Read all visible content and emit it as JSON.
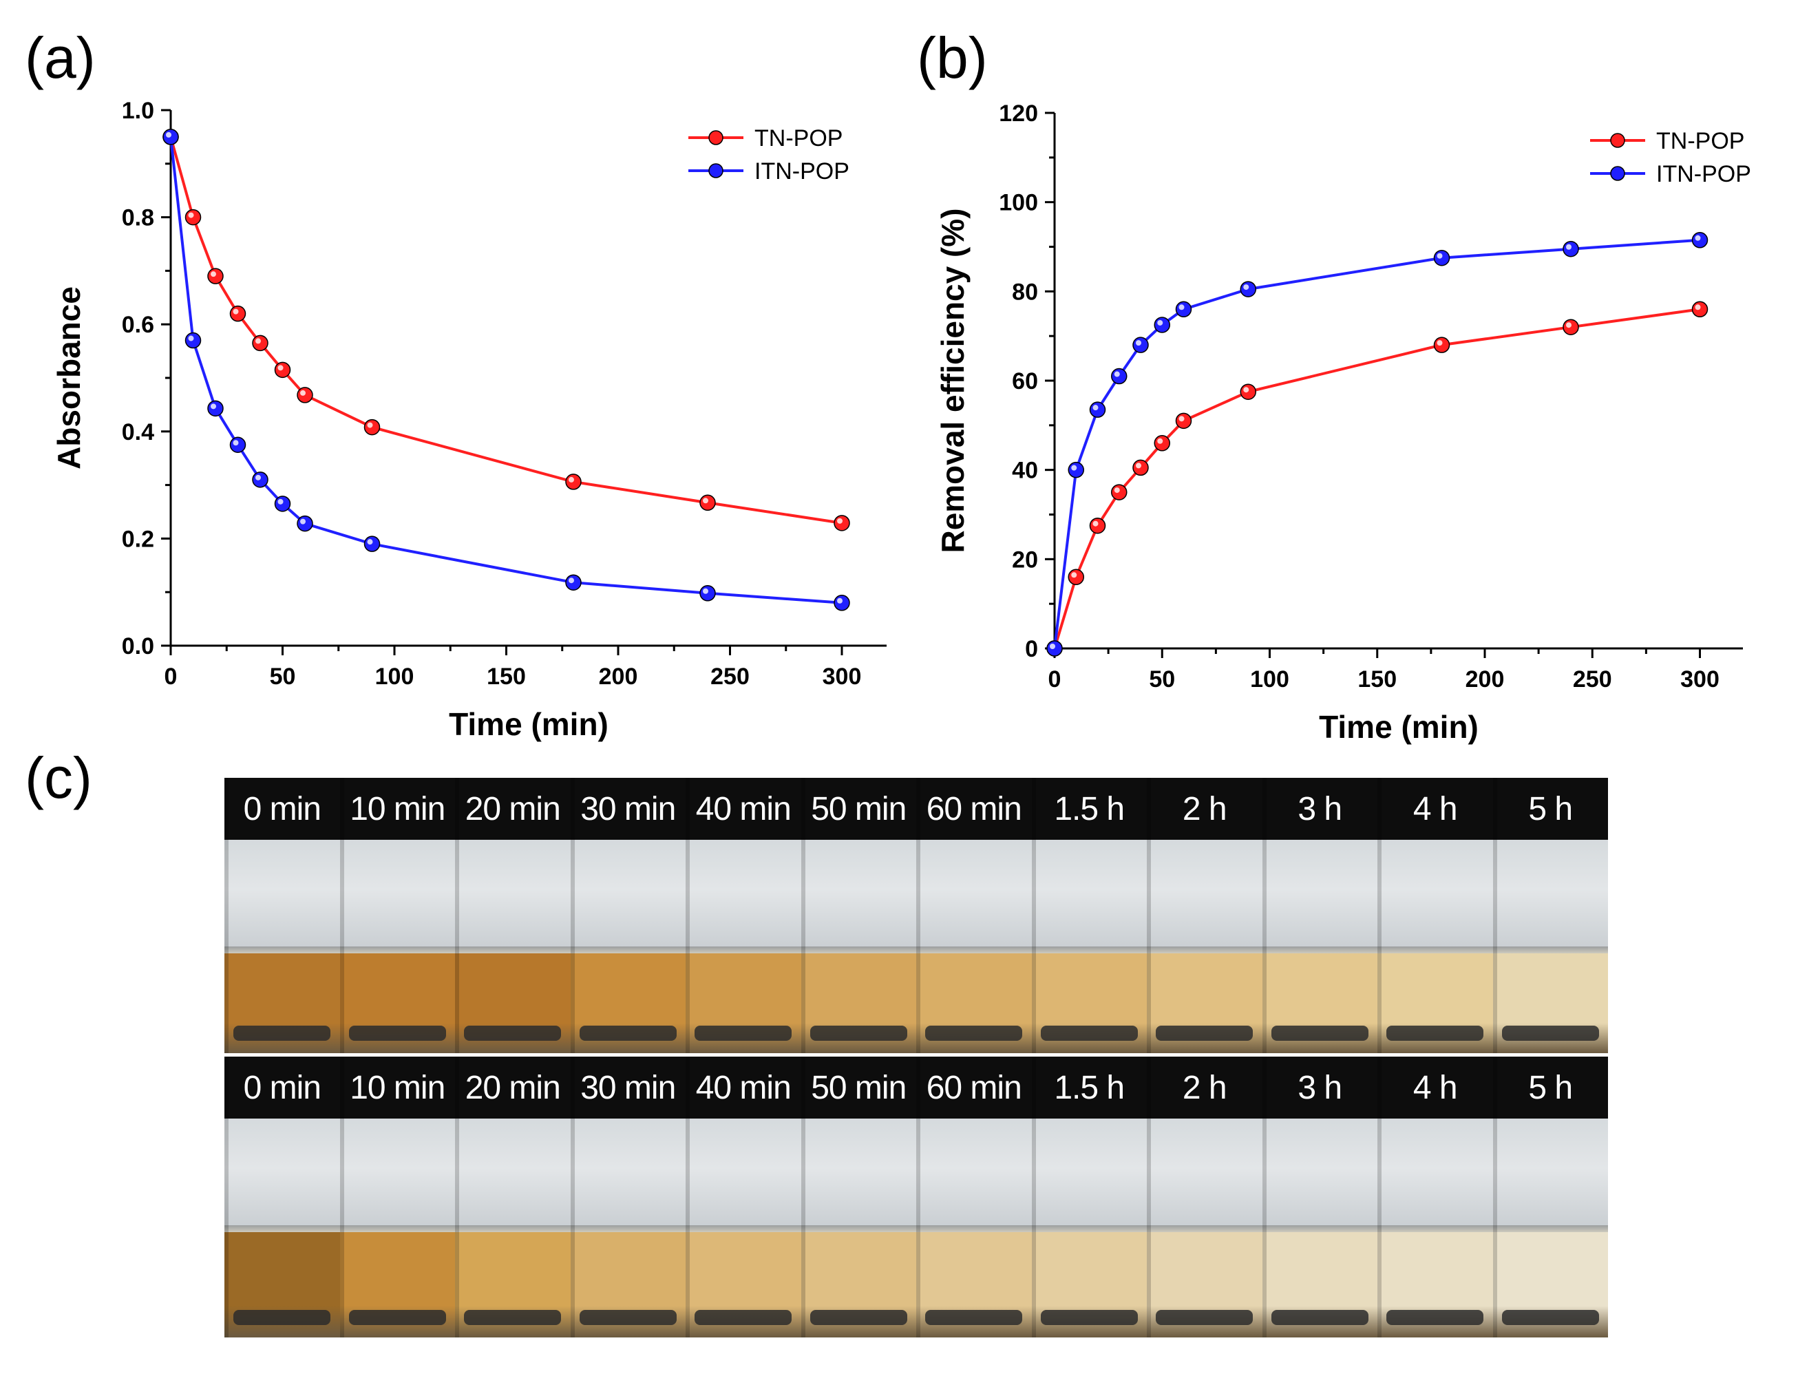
{
  "panels": {
    "a": {
      "label": "(a)"
    },
    "b": {
      "label": "(b)"
    },
    "c": {
      "label": "(c)"
    }
  },
  "chart_data": [
    {
      "id": "a",
      "type": "line",
      "xlabel": "Time (min)",
      "ylabel": "Absorbance",
      "xlim": [
        0,
        320
      ],
      "ylim": [
        0.0,
        1.0
      ],
      "xticks": [
        0,
        50,
        100,
        150,
        200,
        250,
        300
      ],
      "yticks": [
        "0.0",
        "0.2",
        "0.4",
        "0.6",
        "0.8",
        "1.0"
      ],
      "legend_position": "top-right",
      "x": [
        0,
        10,
        20,
        30,
        40,
        50,
        60,
        90,
        180,
        240,
        300
      ],
      "series": [
        {
          "name": "TN-POP",
          "color": "#ff2020",
          "values": [
            0.95,
            0.8,
            0.69,
            0.62,
            0.565,
            0.515,
            0.468,
            0.408,
            0.306,
            0.267,
            0.229
          ]
        },
        {
          "name": "ITN-POP",
          "color": "#2020ff",
          "values": [
            0.95,
            0.57,
            0.443,
            0.375,
            0.31,
            0.265,
            0.228,
            0.19,
            0.118,
            0.098,
            0.08
          ]
        }
      ]
    },
    {
      "id": "b",
      "type": "line",
      "xlabel": "Time (min)",
      "ylabel": "Removal efficiency (%)",
      "xlim": [
        0,
        320
      ],
      "ylim": [
        0,
        120
      ],
      "xticks": [
        0,
        50,
        100,
        150,
        200,
        250,
        300
      ],
      "yticks": [
        "0",
        "20",
        "40",
        "60",
        "80",
        "100",
        "120"
      ],
      "legend_position": "top-right",
      "x": [
        0,
        10,
        20,
        30,
        40,
        50,
        60,
        90,
        180,
        240,
        300
      ],
      "series": [
        {
          "name": "TN-POP",
          "color": "#ff2020",
          "values": [
            0,
            16,
            27.5,
            35,
            40.5,
            46,
            51,
            57.5,
            68,
            72,
            76
          ]
        },
        {
          "name": "ITN-POP",
          "color": "#2020ff",
          "values": [
            0,
            40,
            53.5,
            61,
            68,
            72.5,
            76,
            80.5,
            87.5,
            89.5,
            91.5
          ]
        }
      ]
    }
  ],
  "photos": {
    "rows": [
      {
        "labels": [
          "0 min",
          "10 min",
          "20 min",
          "30 min",
          "40 min",
          "50 min",
          "60 min",
          "1.5 h",
          "2 h",
          "3 h",
          "4 h",
          "5 h"
        ],
        "liquid_colors": [
          "#b5782c",
          "#bd7d2e",
          "#b7782b",
          "#c98e3c",
          "#cf9a4b",
          "#d5a65c",
          "#d9ae66",
          "#ddb672",
          "#e1c082",
          "#e4c88f",
          "#e6cf9b",
          "#e7d7b0"
        ]
      },
      {
        "labels": [
          "0 min",
          "10 min",
          "20 min",
          "30 min",
          "40 min",
          "50 min",
          "60 min",
          "1.5 h",
          "2 h",
          "3 h",
          "4 h",
          "5 h"
        ],
        "liquid_colors": [
          "#9b6a26",
          "#c78d3a",
          "#d5a655",
          "#d9b06a",
          "#ddb877",
          "#dfbf84",
          "#e2c793",
          "#e4cea0",
          "#e6d5b0",
          "#e8dcbe",
          "#e9dfc5",
          "#eae2cc"
        ]
      }
    ]
  }
}
